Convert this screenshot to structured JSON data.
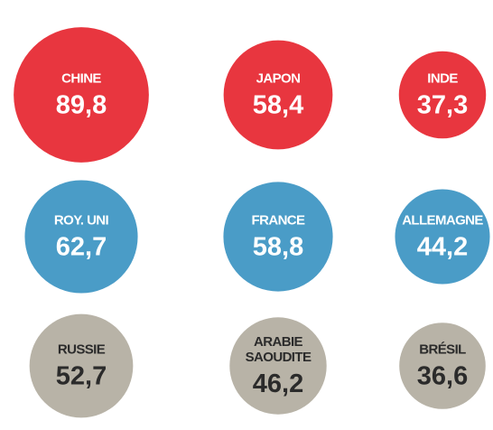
{
  "chart_data": {
    "type": "bubble",
    "categories": [
      "CHINE",
      "JAPON",
      "INDE",
      "ROY. UNI",
      "FRANCE",
      "ALLEMAGNE",
      "RUSSIE",
      "ARABIE SAOUDITE",
      "BRÉSIL"
    ],
    "values": [
      89.8,
      58.4,
      37.3,
      62.7,
      58.8,
      44.2,
      52.7,
      46.2,
      36.6
    ],
    "value_labels": [
      "89,8",
      "58,4",
      "37,3",
      "62,7",
      "58,8",
      "44,2",
      "52,7",
      "46,2",
      "36,6"
    ],
    "colors": [
      "#e8363f",
      "#e8363f",
      "#e8363f",
      "#4a9cc7",
      "#4a9cc7",
      "#4a9cc7",
      "#b8b3a7",
      "#b8b3a7",
      "#b8b3a7"
    ],
    "text_colors": [
      "#ffffff",
      "#ffffff",
      "#ffffff",
      "#ffffff",
      "#ffffff",
      "#ffffff",
      "#2b2b2b",
      "#2b2b2b",
      "#2b2b2b"
    ]
  }
}
